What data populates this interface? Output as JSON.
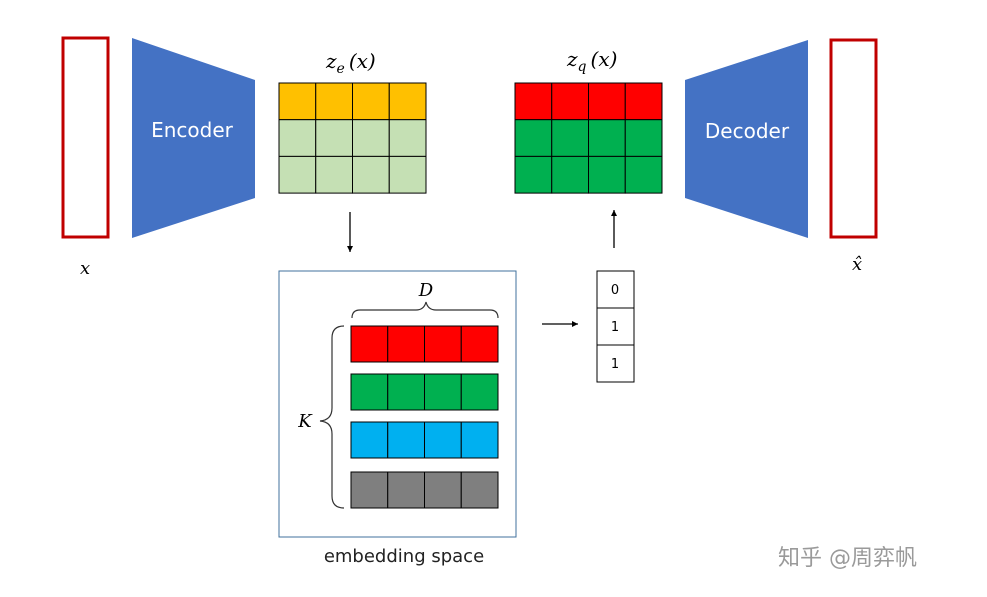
{
  "labels": {
    "input": "x",
    "output": "x̂",
    "encoder": "Encoder",
    "decoder": "Decoder",
    "ze_main": "z",
    "ze_sub": "e",
    "ze_arg": "(x)",
    "zq_main": "z",
    "zq_sub": "q",
    "zq_arg": "(x)",
    "dim_d": "D",
    "dim_k": "K",
    "caption": "embedding space",
    "watermark": "知乎 @周弈帆"
  },
  "index_vector": [
    "0",
    "1",
    "1"
  ],
  "colors": {
    "frame_red": "#C00000",
    "block_blue": "#4472C4",
    "ze_top_row": "#FFC000",
    "ze_other_rows": "#C5E0B4",
    "zq_top_row": "#FF0000",
    "zq_other_rows": "#00B050",
    "codebook_red": "#FF0000",
    "codebook_green": "#00B050",
    "codebook_blue": "#00B0F0",
    "codebook_gray": "#7F7F7F",
    "box_border": "#41719C"
  }
}
